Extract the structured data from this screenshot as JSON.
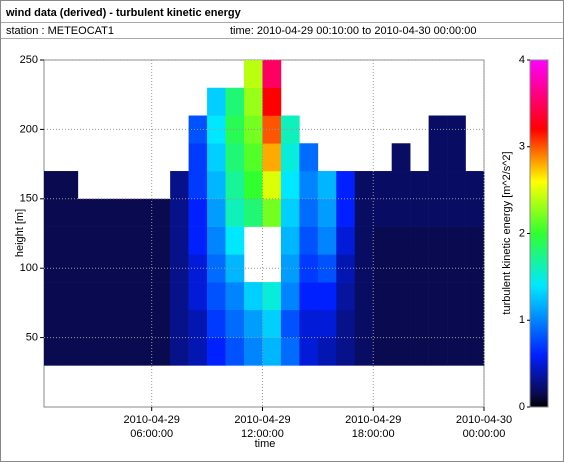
{
  "chart_data": {
    "type": "heatmap",
    "title": "wind data (derived) - turbulent kinetic energy",
    "station": "station : METEOCAT1",
    "period": "time: 2010-04-29 00:10:00 to 2010-04-30 00:00:00",
    "xlabel": "time",
    "ylabel": "height [m]",
    "colorbar_label": "turbulent kinetic energy [m^2/s^2]",
    "xlim": [
      0.1667,
      24
    ],
    "xticks": [
      {
        "value": 6,
        "label": "2010-04-29 06:00:00"
      },
      {
        "value": 12,
        "label": "2010-04-29 12:00:00"
      },
      {
        "value": 18,
        "label": "2010-04-29 18:00:00"
      },
      {
        "value": 24,
        "label": "2010-04-30 00:00:00"
      }
    ],
    "ylim": [
      0,
      250
    ],
    "yticks": [
      50,
      100,
      150,
      200,
      250
    ],
    "clim": [
      0,
      4
    ],
    "cticks": [
      0,
      1,
      2,
      3,
      4
    ],
    "grid": true,
    "colorscale": [
      [
        0,
        "#000000"
      ],
      [
        0.15,
        "#0a0a50"
      ],
      [
        0.6,
        "#0020ff"
      ],
      [
        1.4,
        "#00e8ff"
      ],
      [
        2.0,
        "#30ff30"
      ],
      [
        2.6,
        "#ffff00"
      ],
      [
        3.2,
        "#ff0000"
      ],
      [
        4,
        "#ff00ff"
      ]
    ],
    "xbins": [
      0.1667,
      1,
      2,
      3,
      4,
      5,
      6,
      7,
      8,
      9,
      10,
      11,
      12,
      13,
      14,
      15,
      16,
      17,
      18,
      19,
      20,
      21,
      22,
      23,
      24
    ],
    "ybins": [
      30,
      50,
      70,
      90,
      110,
      130,
      150,
      170,
      190,
      210,
      230,
      250
    ],
    "z": [
      [
        0.15,
        0.15,
        0.15,
        0.15,
        0.15,
        0.15,
        0.15,
        0.3,
        0.4,
        0.6,
        0.8,
        1.0,
        1.2,
        0.9,
        0.5,
        0.4,
        0.3,
        0.2,
        0.15,
        0.15,
        0.15,
        0.15,
        0.15,
        0.15
      ],
      [
        0.15,
        0.15,
        0.15,
        0.15,
        0.15,
        0.15,
        0.15,
        0.3,
        0.4,
        0.7,
        0.9,
        1.1,
        1.3,
        0.8,
        0.5,
        0.5,
        0.3,
        0.2,
        0.15,
        0.15,
        0.15,
        0.15,
        0.15,
        0.15
      ],
      [
        0.15,
        0.15,
        0.15,
        0.15,
        0.15,
        0.15,
        0.15,
        0.3,
        0.5,
        0.8,
        1.0,
        1.3,
        1.5,
        1.0,
        0.6,
        0.6,
        0.35,
        0.2,
        0.15,
        0.15,
        0.15,
        0.15,
        0.15,
        0.15
      ],
      [
        0.15,
        0.15,
        0.15,
        0.15,
        0.15,
        0.15,
        0.15,
        0.3,
        0.5,
        0.9,
        1.2,
        null,
        null,
        1.1,
        0.7,
        0.8,
        0.4,
        0.2,
        0.15,
        0.15,
        0.15,
        0.15,
        0.15,
        0.15
      ],
      [
        0.15,
        0.15,
        0.15,
        0.15,
        0.15,
        0.15,
        0.15,
        0.3,
        0.6,
        1.0,
        1.4,
        null,
        null,
        1.2,
        0.8,
        1.0,
        0.5,
        0.2,
        0.15,
        0.15,
        0.15,
        0.15,
        0.15,
        0.15
      ],
      [
        0.15,
        0.15,
        0.15,
        0.15,
        0.15,
        0.15,
        0.15,
        0.3,
        0.6,
        1.1,
        1.6,
        1.8,
        2.2,
        1.3,
        0.9,
        1.1,
        0.6,
        0.2,
        0.2,
        0.2,
        0.2,
        0.2,
        0.2,
        0.2
      ],
      [
        0.15,
        0.15,
        null,
        null,
        null,
        null,
        null,
        0.3,
        0.7,
        1.2,
        1.7,
        2.0,
        2.5,
        1.4,
        1.0,
        1.2,
        0.6,
        0.2,
        0.2,
        0.2,
        0.2,
        0.2,
        0.2,
        0.2
      ],
      [
        null,
        null,
        null,
        null,
        null,
        null,
        null,
        null,
        0.7,
        1.3,
        1.8,
        2.1,
        2.8,
        1.5,
        0.9,
        null,
        null,
        null,
        null,
        0.2,
        null,
        0.2,
        0.2,
        null
      ],
      [
        null,
        null,
        null,
        null,
        null,
        null,
        null,
        null,
        0.8,
        1.4,
        1.9,
        2.2,
        3.0,
        1.6,
        null,
        null,
        null,
        null,
        null,
        null,
        null,
        0.2,
        0.2,
        null
      ],
      [
        null,
        null,
        null,
        null,
        null,
        null,
        null,
        null,
        null,
        1.3,
        1.8,
        2.3,
        3.2,
        null,
        null,
        null,
        null,
        null,
        null,
        null,
        null,
        null,
        null,
        null
      ],
      [
        null,
        null,
        null,
        null,
        null,
        null,
        null,
        null,
        null,
        null,
        null,
        2.4,
        3.5,
        null,
        null,
        null,
        null,
        null,
        null,
        null,
        null,
        null,
        null,
        null
      ]
    ]
  }
}
